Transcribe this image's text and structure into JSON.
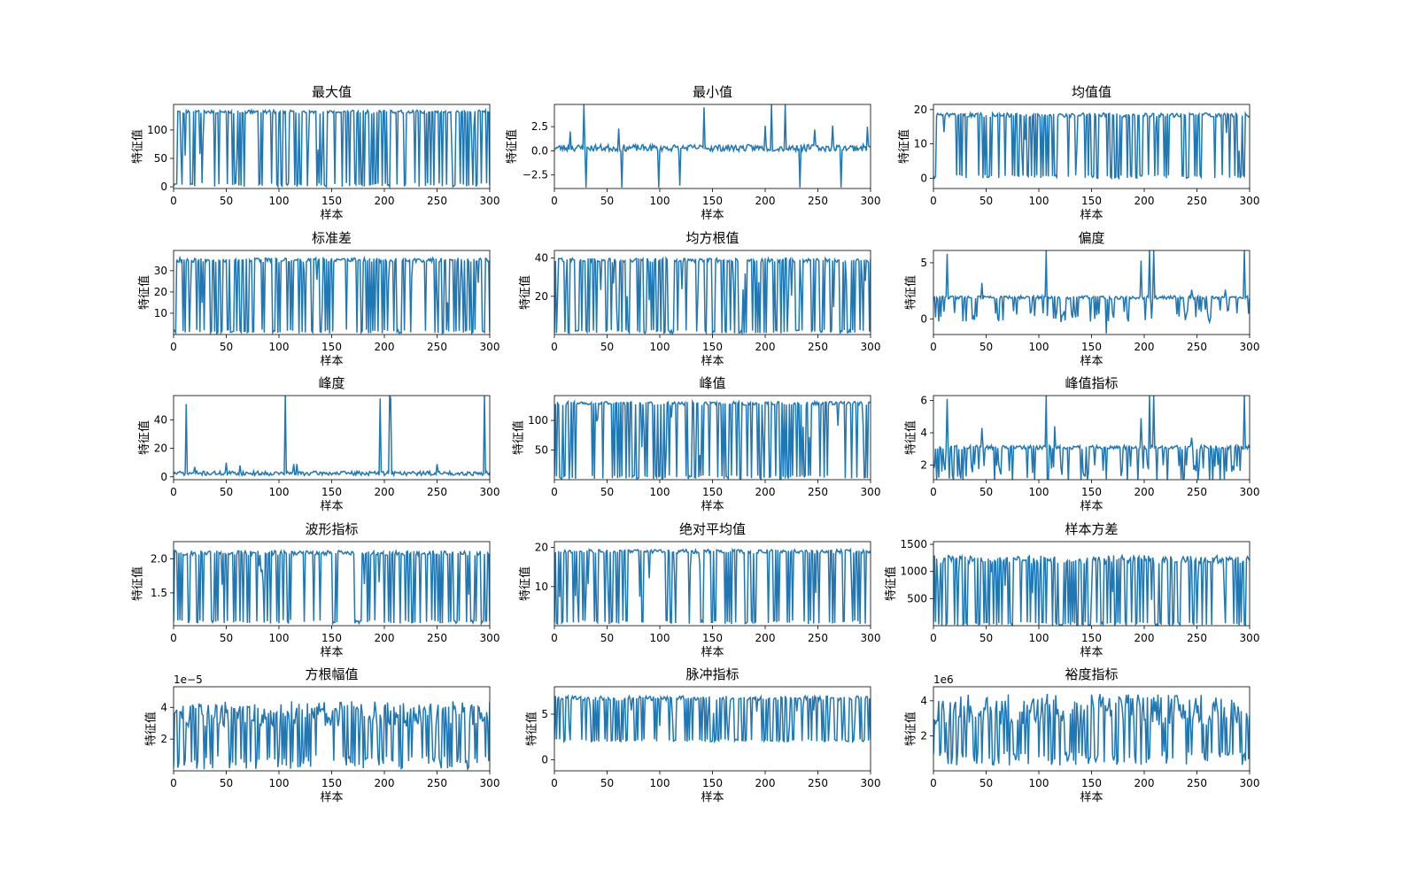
{
  "figure": {
    "xlabel": "样本",
    "ylabel": "特征值",
    "line_color": "#1f77b4"
  },
  "chart_data": [
    {
      "type": "line",
      "title": "最大值",
      "xlim": [
        0,
        300
      ],
      "ylim": [
        -3,
        145
      ],
      "xticks": [
        0,
        50,
        100,
        150,
        200,
        250,
        300
      ],
      "xticklabels": [
        "0",
        "50",
        "100",
        "150",
        "200",
        "250",
        "300"
      ],
      "yticks": [
        0,
        50,
        100
      ],
      "yticklabels": [
        "0",
        "50",
        "100"
      ],
      "offset_label": "",
      "pattern": "binary",
      "lo": 0,
      "hi": 135,
      "spread": 6,
      "seed": 11
    },
    {
      "type": "line",
      "title": "最小值",
      "xlim": [
        0,
        300
      ],
      "ylim": [
        -3.9,
        4.8
      ],
      "xticks": [
        0,
        50,
        100,
        150,
        200,
        250,
        300
      ],
      "xticklabels": [
        "0",
        "50",
        "100",
        "150",
        "200",
        "250",
        "300"
      ],
      "yticks": [
        -2.5,
        0,
        2.5
      ],
      "yticklabels": [
        "−2.5",
        "0.0",
        "2.5"
      ],
      "offset_label": "",
      "pattern": "spikes",
      "lo": 0.3,
      "hi": 0.3,
      "spread": 0.35,
      "seed": 23,
      "spikes": [
        [
          15,
          2.0
        ],
        [
          28,
          4.8
        ],
        [
          30,
          -3.8
        ],
        [
          61,
          2.3
        ],
        [
          64,
          -3.8
        ],
        [
          99,
          -3.8
        ],
        [
          119,
          -3.6
        ],
        [
          142,
          4.5
        ],
        [
          200,
          2.6
        ],
        [
          206,
          4.8
        ],
        [
          219,
          4.8
        ],
        [
          233,
          -3.8
        ],
        [
          247,
          2.2
        ],
        [
          264,
          2.6
        ],
        [
          272,
          -3.8
        ],
        [
          297,
          2.5
        ]
      ]
    },
    {
      "type": "line",
      "title": "均值值",
      "xlim": [
        0,
        300
      ],
      "ylim": [
        -3,
        21.5
      ],
      "xticks": [
        0,
        50,
        100,
        150,
        200,
        250,
        300
      ],
      "xticklabels": [
        "0",
        "50",
        "100",
        "150",
        "200",
        "250",
        "300"
      ],
      "yticks": [
        0,
        10,
        20
      ],
      "yticklabels": [
        "0",
        "10",
        "20"
      ],
      "offset_label": "",
      "pattern": "binary",
      "lo": 0,
      "hi": 19,
      "spread": 1.2,
      "seed": 37
    },
    {
      "type": "line",
      "title": "标准差",
      "xlim": [
        0,
        300
      ],
      "ylim": [
        0,
        39.5
      ],
      "xticks": [
        0,
        50,
        100,
        150,
        200,
        250,
        300
      ],
      "xticklabels": [
        "0",
        "50",
        "100",
        "150",
        "200",
        "250",
        "300"
      ],
      "yticks": [
        10,
        20,
        30
      ],
      "yticklabels": [
        "10",
        "20",
        "30"
      ],
      "offset_label": "",
      "pattern": "binary",
      "lo": 0.5,
      "hi": 36,
      "spread": 2,
      "seed": 41
    },
    {
      "type": "line",
      "title": "均方根值",
      "xlim": [
        0,
        300
      ],
      "ylim": [
        0,
        44
      ],
      "xticks": [
        0,
        50,
        100,
        150,
        200,
        250,
        300
      ],
      "xticklabels": [
        "0",
        "50",
        "100",
        "150",
        "200",
        "250",
        "300"
      ],
      "yticks": [
        20,
        40
      ],
      "yticklabels": [
        "20",
        "40"
      ],
      "offset_label": "",
      "pattern": "binary",
      "lo": 0.5,
      "hi": 40,
      "spread": 2.2,
      "seed": 53
    },
    {
      "type": "line",
      "title": "偏度",
      "xlim": [
        0,
        300
      ],
      "ylim": [
        -1.4,
        6.1
      ],
      "xticks": [
        0,
        50,
        100,
        150,
        200,
        250,
        300
      ],
      "xticklabels": [
        "0",
        "50",
        "100",
        "150",
        "200",
        "250",
        "300"
      ],
      "yticks": [
        0,
        5
      ],
      "yticklabels": [
        "0",
        "5"
      ],
      "offset_label": "",
      "pattern": "skew",
      "lo": 1.9,
      "hi": 1.9,
      "spread": 0.15,
      "seed": 61,
      "spikes": [
        [
          13,
          5.8
        ],
        [
          46,
          3.2
        ],
        [
          107,
          6.1
        ],
        [
          164,
          -1.3
        ],
        [
          197,
          5.2
        ],
        [
          205,
          6.1
        ],
        [
          209,
          6.1
        ],
        [
          245,
          2.6
        ],
        [
          277,
          2.6
        ],
        [
          295,
          6.1
        ]
      ]
    },
    {
      "type": "line",
      "title": "峰度",
      "xlim": [
        0,
        300
      ],
      "ylim": [
        -2,
        57
      ],
      "xticks": [
        0,
        50,
        100,
        150,
        200,
        250,
        300
      ],
      "xticklabels": [
        "0",
        "50",
        "100",
        "150",
        "200",
        "250",
        "300"
      ],
      "yticks": [
        0,
        20,
        40
      ],
      "yticklabels": [
        "0",
        "20",
        "40"
      ],
      "offset_label": "",
      "pattern": "spikes",
      "lo": 2.5,
      "hi": 2.5,
      "spread": 1.5,
      "seed": 71,
      "spikes": [
        [
          12,
          51
        ],
        [
          20,
          7
        ],
        [
          50,
          10
        ],
        [
          63,
          8
        ],
        [
          106,
          57
        ],
        [
          114,
          9
        ],
        [
          117,
          9
        ],
        [
          196,
          55
        ],
        [
          205,
          57
        ],
        [
          206,
          55
        ],
        [
          250,
          9
        ],
        [
          295,
          57
        ]
      ]
    },
    {
      "type": "line",
      "title": "峰值",
      "xlim": [
        0,
        300
      ],
      "ylim": [
        0,
        142
      ],
      "xticks": [
        0,
        50,
        100,
        150,
        200,
        250,
        300
      ],
      "xticklabels": [
        "0",
        "50",
        "100",
        "150",
        "200",
        "250",
        "300"
      ],
      "yticks": [
        50,
        100
      ],
      "yticklabels": [
        "50",
        "100"
      ],
      "offset_label": "",
      "pattern": "binary",
      "lo": 1,
      "hi": 132,
      "spread": 6,
      "seed": 83
    },
    {
      "type": "line",
      "title": "峰值指标",
      "xlim": [
        0,
        300
      ],
      "ylim": [
        1.1,
        6.3
      ],
      "xticks": [
        0,
        50,
        100,
        150,
        200,
        250,
        300
      ],
      "xticklabels": [
        "0",
        "50",
        "100",
        "150",
        "200",
        "250",
        "300"
      ],
      "yticks": [
        2,
        4,
        6
      ],
      "yticklabels": [
        "2",
        "4",
        "6"
      ],
      "offset_label": "",
      "pattern": "skew",
      "lo": 3.1,
      "hi": 3.1,
      "spread": 0.12,
      "seed": 97,
      "spikes": [
        [
          13,
          6.1
        ],
        [
          46,
          4.3
        ],
        [
          107,
          6.3
        ],
        [
          115,
          4.4
        ],
        [
          197,
          4.9
        ],
        [
          205,
          6.3
        ],
        [
          209,
          6.3
        ],
        [
          245,
          3.7
        ],
        [
          295,
          6.3
        ]
      ]
    },
    {
      "type": "line",
      "title": "波形指标",
      "xlim": [
        0,
        300
      ],
      "ylim": [
        1.02,
        2.25
      ],
      "xticks": [
        0,
        50,
        100,
        150,
        200,
        250,
        300
      ],
      "xticklabels": [
        "0",
        "50",
        "100",
        "150",
        "200",
        "250",
        "300"
      ],
      "yticks": [
        1.5,
        2.0
      ],
      "yticklabels": [
        "1.5",
        "2.0"
      ],
      "offset_label": "",
      "pattern": "binary",
      "lo": 1.05,
      "hi": 2.12,
      "spread": 0.07,
      "seed": 103
    },
    {
      "type": "line",
      "title": "绝对平均值",
      "xlim": [
        0,
        300
      ],
      "ylim": [
        0,
        21.5
      ],
      "xticks": [
        0,
        50,
        100,
        150,
        200,
        250,
        300
      ],
      "xticklabels": [
        "0",
        "50",
        "100",
        "150",
        "200",
        "250",
        "300"
      ],
      "yticks": [
        10,
        20
      ],
      "yticklabels": [
        "10",
        "20"
      ],
      "offset_label": "",
      "pattern": "binary",
      "lo": 0.4,
      "hi": 19.5,
      "spread": 1,
      "seed": 113
    },
    {
      "type": "line",
      "title": "样本方差",
      "xlim": [
        0,
        300
      ],
      "ylim": [
        0,
        1550
      ],
      "xticks": [
        0,
        50,
        100,
        150,
        200,
        250,
        300
      ],
      "xticklabels": [
        "0",
        "50",
        "100",
        "150",
        "200",
        "250",
        "300"
      ],
      "yticks": [
        500,
        1000,
        1500
      ],
      "yticklabels": [
        "500",
        "1000",
        "1500"
      ],
      "offset_label": "",
      "pattern": "binary",
      "lo": 5,
      "hi": 1300,
      "spread": 150,
      "seed": 127
    },
    {
      "type": "line",
      "title": "方根幅值",
      "xlim": [
        0,
        300
      ],
      "ylim": [
        0,
        5.3
      ],
      "xticks": [
        0,
        50,
        100,
        150,
        200,
        250,
        300
      ],
      "xticklabels": [
        "0",
        "50",
        "100",
        "150",
        "200",
        "250",
        "300"
      ],
      "yticks": [
        2,
        4
      ],
      "yticklabels": [
        "2",
        "4"
      ],
      "offset_label": "1e−5",
      "pattern": "noisy",
      "lo": 0.1,
      "hi": 3.6,
      "spread": 0.8,
      "seed": 131
    },
    {
      "type": "line",
      "title": "脉冲指标",
      "xlim": [
        0,
        300
      ],
      "ylim": [
        -1.2,
        8
      ],
      "xticks": [
        0,
        50,
        100,
        150,
        200,
        250,
        300
      ],
      "xticklabels": [
        "0",
        "50",
        "100",
        "150",
        "200",
        "250",
        "300"
      ],
      "yticks": [
        0,
        5
      ],
      "yticklabels": [
        "0",
        "5"
      ],
      "offset_label": "",
      "pattern": "binary",
      "lo": 2,
      "hi": 7,
      "spread": 0.5,
      "seed": 139
    },
    {
      "type": "line",
      "title": "裕度指标",
      "xlim": [
        0,
        300
      ],
      "ylim": [
        0,
        4.8
      ],
      "xticks": [
        0,
        50,
        100,
        150,
        200,
        250,
        300
      ],
      "xticklabels": [
        "0",
        "50",
        "100",
        "150",
        "200",
        "250",
        "300"
      ],
      "yticks": [
        2,
        4
      ],
      "yticklabels": [
        "2",
        "4"
      ],
      "offset_label": "1e6",
      "pattern": "noisy",
      "lo": 0.3,
      "hi": 3.5,
      "spread": 0.9,
      "seed": 149
    }
  ]
}
